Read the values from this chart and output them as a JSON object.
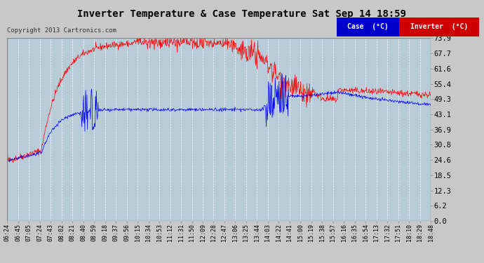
{
  "title": "Inverter Temperature & Case Temperature Sat Sep 14 18:59",
  "copyright": "Copyright 2013 Cartronics.com",
  "background_color": "#c8c8c8",
  "plot_bg_color": "#b8ccd8",
  "grid_color": "#ffffff",
  "ylim": [
    0.0,
    73.9
  ],
  "yticks": [
    0.0,
    6.2,
    12.3,
    18.5,
    24.6,
    30.8,
    36.9,
    43.1,
    49.3,
    55.4,
    61.6,
    67.7,
    73.9
  ],
  "case_color": "#0000ff",
  "inverter_color": "#ff0000",
  "legend_case_bg": "#0000cc",
  "legend_inverter_bg": "#cc0000",
  "xtick_labels": [
    "06:24",
    "06:45",
    "07:05",
    "07:24",
    "07:43",
    "08:02",
    "08:21",
    "08:40",
    "08:59",
    "09:18",
    "09:37",
    "09:56",
    "10:15",
    "10:34",
    "10:53",
    "11:12",
    "11:31",
    "11:50",
    "12:09",
    "12:28",
    "12:47",
    "13:06",
    "13:25",
    "13:44",
    "14:03",
    "14:22",
    "14:41",
    "15:00",
    "15:19",
    "15:38",
    "15:57",
    "16:16",
    "16:35",
    "16:54",
    "17:13",
    "17:32",
    "17:51",
    "18:10",
    "18:29",
    "18:48"
  ],
  "n_points": 1000,
  "seed": 42
}
